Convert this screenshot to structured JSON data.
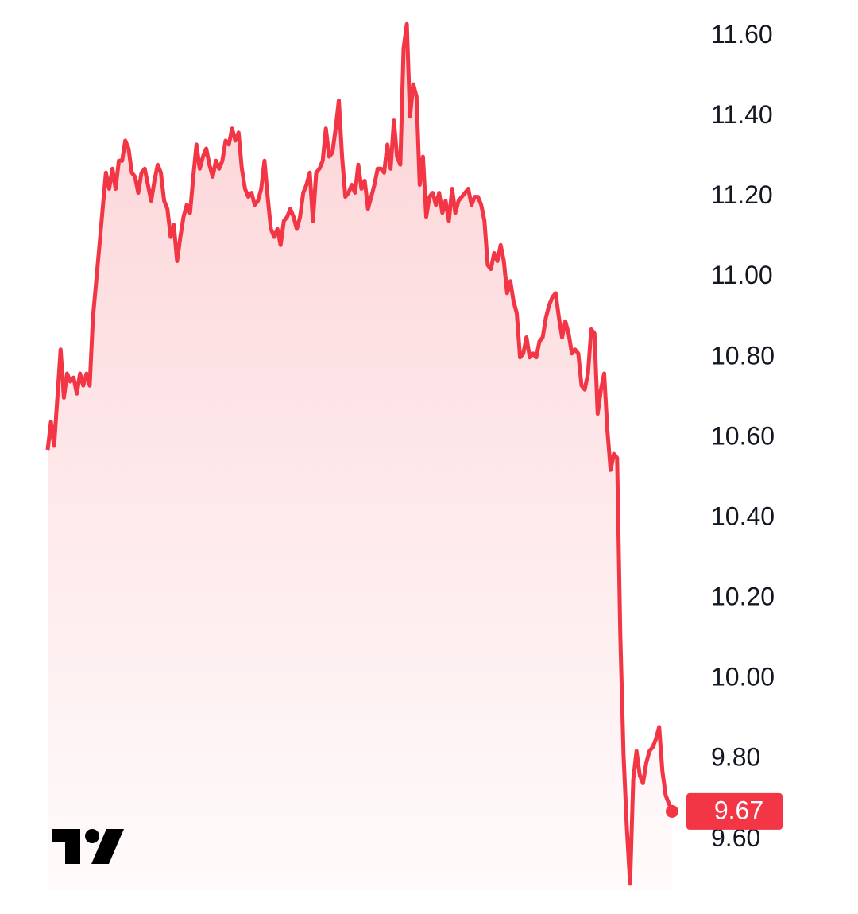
{
  "chart_data": {
    "type": "area",
    "series": [
      {
        "color": "#f23645",
        "values": [
          10.57,
          10.64,
          10.58,
          10.7,
          10.82,
          10.7,
          10.76,
          10.74,
          10.75,
          10.71,
          10.76,
          10.73,
          10.76,
          10.73,
          10.9,
          10.99,
          11.08,
          11.17,
          11.26,
          11.22,
          11.27,
          11.22,
          11.29,
          11.29,
          11.34,
          11.32,
          11.26,
          11.25,
          11.21,
          11.26,
          11.27,
          11.23,
          11.19,
          11.24,
          11.28,
          11.26,
          11.19,
          11.17,
          11.1,
          11.13,
          11.04,
          11.1,
          11.15,
          11.18,
          11.16,
          11.25,
          11.33,
          11.27,
          11.3,
          11.32,
          11.28,
          11.25,
          11.29,
          11.27,
          11.29,
          11.34,
          11.33,
          11.37,
          11.34,
          11.36,
          11.27,
          11.22,
          11.2,
          11.21,
          11.18,
          11.19,
          11.22,
          11.29,
          11.2,
          11.12,
          11.1,
          11.12,
          11.08,
          11.14,
          11.15,
          11.17,
          11.15,
          11.12,
          11.15,
          11.21,
          11.23,
          11.26,
          11.14,
          11.26,
          11.27,
          11.29,
          11.37,
          11.3,
          11.31,
          11.37,
          11.44,
          11.3,
          11.2,
          11.21,
          11.23,
          11.21,
          11.28,
          11.22,
          11.24,
          11.17,
          11.2,
          11.23,
          11.27,
          11.27,
          11.26,
          11.33,
          11.27,
          11.39,
          11.3,
          11.28,
          11.57,
          11.63,
          11.4,
          11.48,
          11.45,
          11.23,
          11.3,
          11.15,
          11.2,
          11.21,
          11.18,
          11.21,
          11.16,
          11.19,
          11.14,
          11.22,
          11.16,
          11.19,
          11.2,
          11.21,
          11.22,
          11.18,
          11.2,
          11.2,
          11.18,
          11.14,
          11.03,
          11.02,
          11.06,
          11.04,
          11.08,
          11.04,
          10.96,
          10.99,
          10.94,
          10.91,
          10.8,
          10.81,
          10.85,
          10.8,
          10.81,
          10.8,
          10.84,
          10.85,
          10.9,
          10.93,
          10.95,
          10.96,
          10.9,
          10.85,
          10.89,
          10.86,
          10.81,
          10.82,
          10.81,
          10.73,
          10.72,
          10.76,
          10.87,
          10.86,
          10.66,
          10.72,
          10.76,
          10.62,
          10.52,
          10.56,
          10.55,
          10.11,
          9.81,
          9.63,
          9.49,
          9.75,
          9.82,
          9.76,
          9.74,
          9.79,
          9.82,
          9.83,
          9.85,
          9.88,
          9.77,
          9.71,
          9.69,
          9.67
        ]
      }
    ],
    "ylim": [
      9.47,
      11.69
    ],
    "yticks": [
      {
        "value": 11.6,
        "label": "11.60"
      },
      {
        "value": 11.4,
        "label": "11.40"
      },
      {
        "value": 11.2,
        "label": "11.20"
      },
      {
        "value": 11,
        "label": "11.00"
      },
      {
        "value": 10.8,
        "label": "10.80"
      },
      {
        "value": 10.6,
        "label": "10.60"
      },
      {
        "value": 10.4,
        "label": "10.40"
      },
      {
        "value": 10.2,
        "label": "10.20"
      },
      {
        "value": 10,
        "label": "10.00"
      },
      {
        "value": 9.8,
        "label": "9.80"
      },
      {
        "value": 9.6,
        "label": "9.60"
      }
    ]
  }
}
